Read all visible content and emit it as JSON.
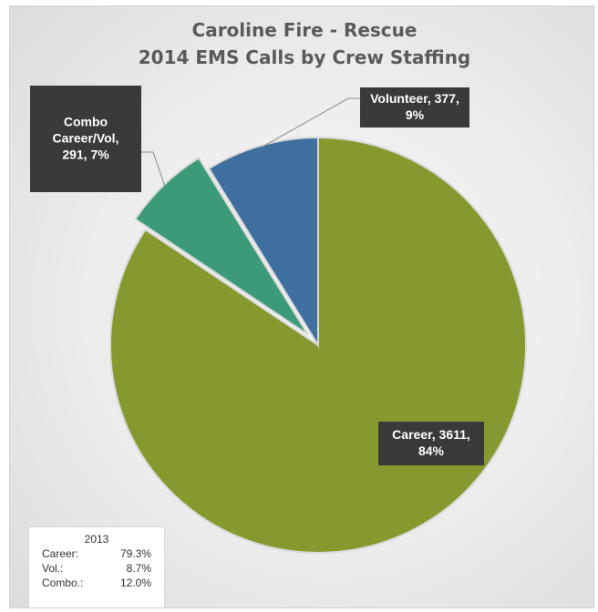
{
  "chart_data": {
    "type": "pie",
    "title": [
      "Caroline Fire - Rescue",
      "2014 EMS Calls by Crew Staffing"
    ],
    "slices": [
      {
        "label": "Career",
        "value": 3611,
        "percent": 84,
        "color": "#86992f",
        "data_label": [
          "Career, 3611,",
          "84%"
        ]
      },
      {
        "label": "Combo Career/Vol",
        "value": 291,
        "percent": 7,
        "color": "#3c9a78",
        "data_label": [
          "Combo",
          "Career/Vol,",
          "291, 7%"
        ]
      },
      {
        "label": "Volunteer",
        "value": 377,
        "percent": 9,
        "color": "#3f6f9e",
        "data_label": [
          "Volunteer, 377,",
          "9%"
        ]
      }
    ],
    "exploded_slices": [
      "Combo Career/Vol"
    ],
    "legend": "none"
  },
  "note": {
    "year": "2013",
    "rows": [
      {
        "label": "Career:",
        "value": "79.3%"
      },
      {
        "label": "Vol.:",
        "value": "8.7%"
      },
      {
        "label": "Combo.:",
        "value": "12.0%"
      }
    ]
  }
}
